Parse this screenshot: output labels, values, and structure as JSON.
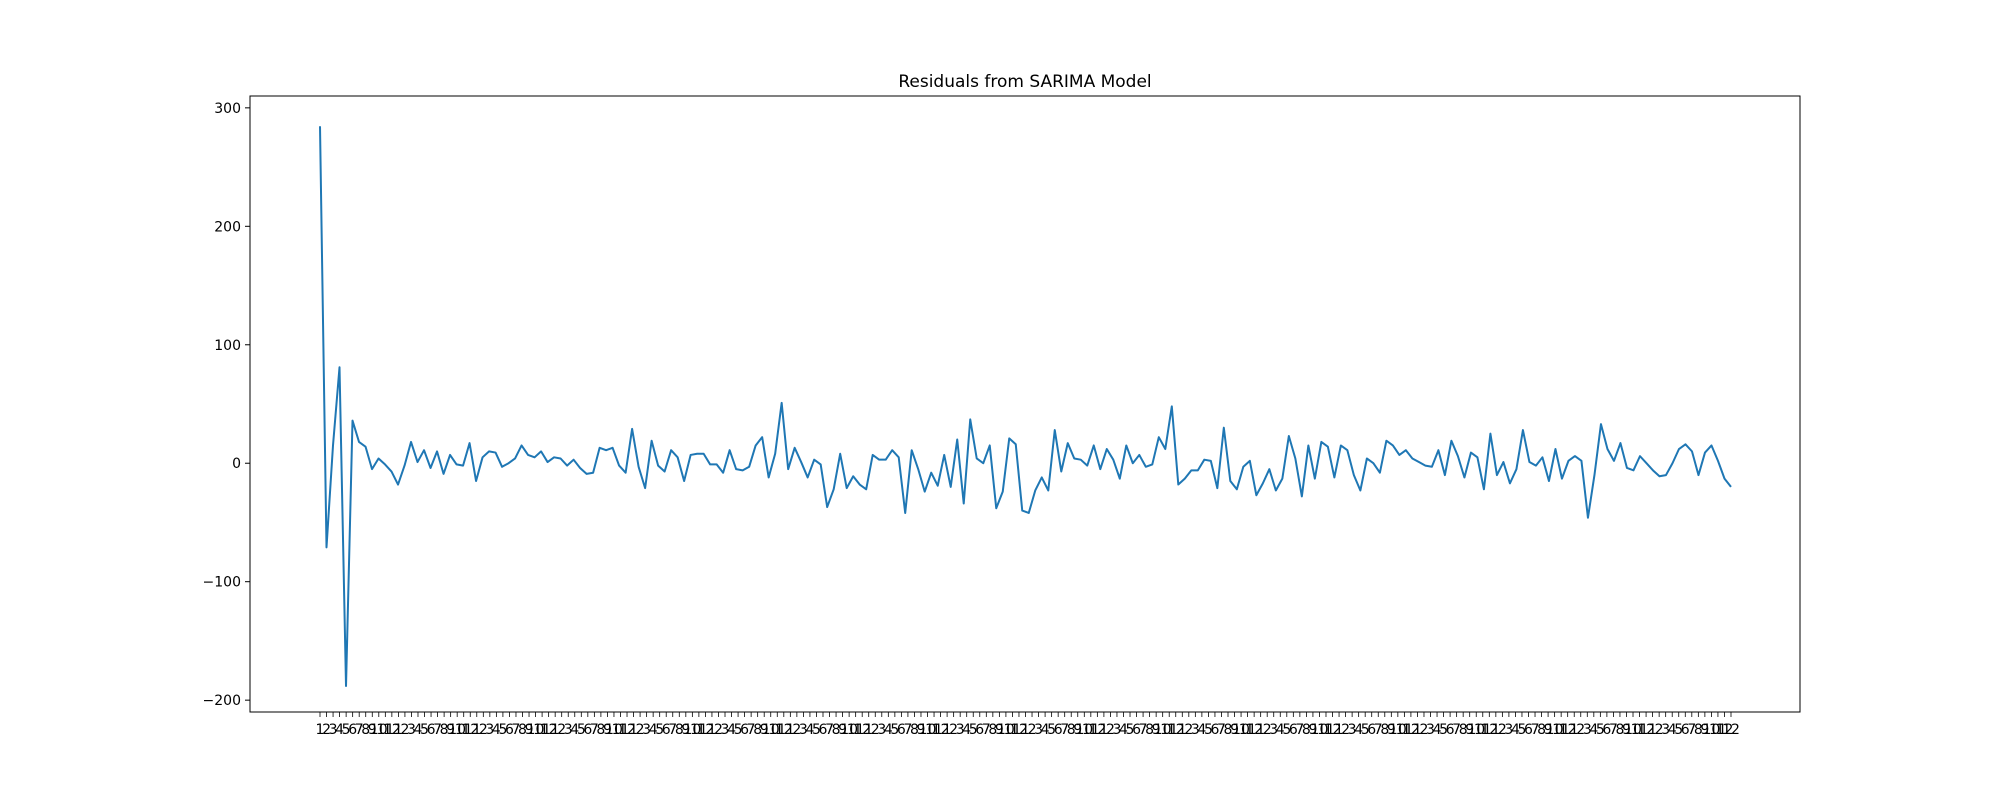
{
  "figure": {
    "background": "#ffffff"
  },
  "chart_data": {
    "type": "line",
    "title": "Residuals from SARIMA Model",
    "xlabel": "",
    "ylabel": "",
    "ylim": [
      -210,
      310
    ],
    "yticks": [
      -200,
      -100,
      0,
      100,
      200,
      300
    ],
    "xtick_count": 217,
    "x_start_label": "1",
    "x_end_label": "12",
    "xtick_label_note": "x tick labels are overlapping and illegible except the first and last",
    "grid": false,
    "legend": "none",
    "series": [
      {
        "color": "#1f77b4",
        "values": [
          284.5,
          -71,
          15,
          81,
          -188,
          36,
          18,
          14,
          -5,
          4,
          -1,
          -7,
          -18,
          -2,
          18,
          1,
          11,
          -4,
          10,
          -9,
          7,
          -1,
          -2,
          17,
          -15,
          5,
          10,
          9,
          -3,
          0,
          4,
          15,
          7,
          5,
          10,
          1,
          5,
          4,
          -2,
          3,
          -4,
          -9,
          -8,
          13,
          11,
          13,
          -2,
          -8,
          29,
          -3,
          -21,
          19,
          -2,
          -7,
          11,
          5,
          -15,
          7,
          8,
          8,
          -1,
          -1,
          -8,
          11,
          -5,
          -6,
          -3,
          15,
          22,
          -12,
          8,
          51,
          -5,
          13,
          1,
          -12,
          3,
          -1,
          -37,
          -22,
          8,
          -21,
          -11,
          -18,
          -22,
          7,
          3,
          3,
          11,
          5,
          -42,
          11,
          -5,
          -24,
          -8,
          -19,
          7,
          -20,
          20,
          -34,
          37,
          4,
          0,
          15,
          -38,
          -24,
          21,
          16,
          -40,
          -42,
          -23,
          -12,
          -23,
          28,
          -7,
          17,
          4,
          3,
          -2,
          15,
          -5,
          12,
          3,
          -13,
          15,
          0,
          7,
          -3,
          -1,
          22,
          12,
          48,
          -18,
          -13,
          -6,
          -6,
          3,
          2,
          -21,
          30,
          -15,
          -22,
          -3,
          2,
          -27,
          -17,
          -5,
          -23,
          -13,
          23,
          4,
          -28,
          15,
          -13,
          18,
          14,
          -12,
          15,
          11,
          -10,
          -23,
          4,
          0,
          -8,
          19,
          15,
          7,
          11,
          4,
          1,
          -2,
          -3,
          11,
          -10,
          19,
          6,
          -12,
          9,
          5,
          -22,
          25,
          -10,
          1,
          -17,
          -5,
          28,
          1,
          -2,
          5,
          -15,
          12,
          -13,
          2,
          6,
          2,
          -46,
          -10,
          33,
          12,
          2,
          17,
          -4,
          -6,
          6,
          0,
          -6,
          -11,
          -10,
          0,
          12,
          16,
          10,
          -10,
          9,
          15,
          2,
          -13,
          -20
        ]
      }
    ]
  }
}
